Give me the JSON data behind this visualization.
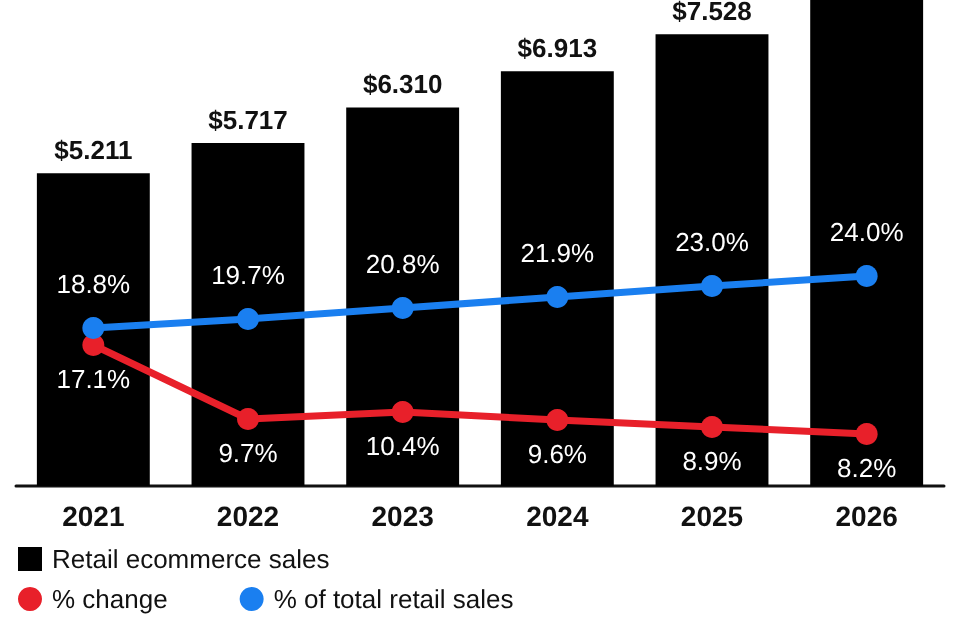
{
  "chart_data": {
    "type": "bar",
    "categories": [
      "2021",
      "2022",
      "2023",
      "2024",
      "2025",
      "2026"
    ],
    "ylim": [
      0,
      8.1
    ],
    "y2lim": [
      3,
      51.6
    ],
    "legend": "bottom left",
    "series": [
      {
        "name": "Retail ecommerce sales",
        "color": "#000000",
        "values": [
          5.211,
          5.717,
          6.31,
          6.913,
          7.528,
          8.1
        ],
        "value_labels": [
          "$5.211",
          "$5.717",
          "$6.310",
          "$6.913",
          "$7.528",
          null
        ]
      },
      {
        "name": "% change",
        "type": "line",
        "axis": "y2",
        "color": "#e8202a",
        "marker": "circle",
        "values": [
          17.1,
          9.7,
          10.4,
          9.6,
          8.9,
          8.2
        ],
        "value_labels": [
          "17.1%",
          "9.7%",
          "10.4%",
          "9.6%",
          "8.9%",
          "8.2%"
        ]
      },
      {
        "name": "% of total retail sales",
        "type": "line",
        "axis": "y2",
        "color": "#1a7ff0",
        "marker": "circle",
        "values": [
          18.8,
          19.7,
          20.8,
          21.9,
          23.0,
          24.0
        ],
        "value_labels": [
          "18.8%",
          "19.7%",
          "20.8%",
          "21.9%",
          "23.0%",
          "24.0%"
        ]
      }
    ]
  }
}
